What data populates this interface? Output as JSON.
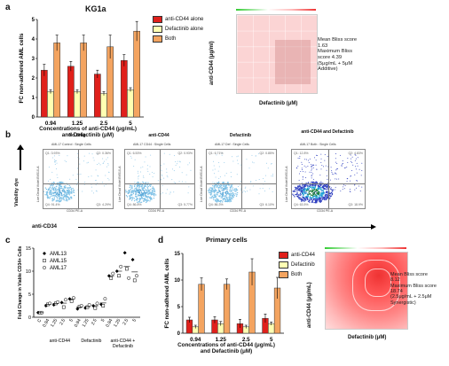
{
  "panel_a": {
    "letter": "a",
    "title": "KG1a",
    "ylabel": "FC non-adhered AML cells",
    "xlabel_line1": "Concentrations of anti-CD44 (μg/mL)",
    "xlabel_line2": "and Defactinib (μM)",
    "legend": [
      "anti-CD44 alone",
      "Defactinib alone",
      "Both"
    ],
    "heatmap": {
      "ylabel": "anti-CD44 (μg/ml)",
      "xlabel": "Defactinib (μM)",
      "note_lines": [
        "Mean Bliss score",
        "1.63",
        "Maximum Bliss",
        "score 4.39",
        "(5μg/mL + 5μM",
        "Additive)"
      ]
    }
  },
  "panel_b": {
    "letter": "b",
    "ylabel": "Viability dye",
    "xlabel": "anti-CD34",
    "plots": [
      {
        "title": "No drug",
        "header": "AML17 Control : Single Cells",
        "q1": "Q1: 3.93%",
        "q2": "Q2: 0.36%",
        "q3": "Q3: 4.29%",
        "q4": "Q4: 91.4%"
      },
      {
        "title": "anti-CD44",
        "header": "AML17 CD44 : Single Cells",
        "q1": "Q1: 6.53%",
        "q2": "Q2: 0.93%",
        "q3": "Q3: 5.77%",
        "q4": "Q4: 86.8%"
      },
      {
        "title": "Defactinib",
        "header": "AML17 Def : Single Cells",
        "q1": "Q1: 6.71%",
        "q2": "Q2: 0.85%",
        "q3": "Q3: 6.10%",
        "q4": "Q4: 86.3%"
      },
      {
        "title": "anti-CD44 and Defactinib",
        "header": "AML17 Both : Single Cells",
        "q1": "Q1: 12.8%",
        "q2": "Q2: 4.83%",
        "q3": "Q3: 18.9%",
        "q4": "Q4: 63.5%"
      }
    ],
    "axis_y": "Live Dead Violet BV510-A",
    "axis_x": "CD34 PE-A"
  },
  "panel_c": {
    "letter": "c",
    "ylabel_line1": "Fold Change in Viable CD34+ Cells",
    "legend": [
      "AML13",
      "AML15",
      "AML17"
    ],
    "group_labels": [
      "anti-CD44",
      "Defactinib",
      "anti-CD44 +",
      "Defactinib"
    ],
    "tick_labels": [
      "C",
      "0.94",
      "1.25",
      "2.5",
      "5",
      "0.94",
      "1.25",
      "2.5",
      "5",
      "0.94",
      "1.25",
      "2.5",
      "5"
    ]
  },
  "panel_d": {
    "letter": "d",
    "title": "Primary cells",
    "ylabel": "FC non-adhered AML cells",
    "xlabel_line1": "Concentrations of anti-CD44 (μg/mL)",
    "xlabel_line2": "and Defactinib (μM)",
    "legend": [
      "anti-CD44",
      "Defactinib",
      "Both"
    ],
    "heatmap": {
      "ylabel": "anti-CD44 (μg/mL)",
      "xlabel": "Defactinib (μM)",
      "note_lines": [
        "Mean Bliss score",
        "8.12",
        "Maximum Bliss score",
        "18.74",
        "(2.5μg/mL + 2.5μM",
        "Synergistic)"
      ]
    }
  },
  "colors": {
    "anti_cd44": "#e0201b",
    "defactinib": "#ffffb3",
    "both": "#f4a460"
  },
  "chart_data": [
    {
      "type": "bar",
      "panel": "a",
      "categories": [
        "0.94",
        "1.25",
        "2.5",
        "5"
      ],
      "ylim": [
        0,
        5
      ],
      "yticks": [
        0,
        1,
        2,
        3,
        4,
        5
      ],
      "series": [
        {
          "name": "anti-CD44 alone",
          "values": [
            2.4,
            2.6,
            2.2,
            2.9
          ],
          "errors": [
            0.3,
            0.25,
            0.2,
            0.3
          ]
        },
        {
          "name": "Defactinib alone",
          "values": [
            1.3,
            1.3,
            1.2,
            1.4
          ],
          "errors": [
            0.1,
            0.1,
            0.1,
            0.1
          ]
        },
        {
          "name": "Both",
          "values": [
            3.8,
            3.8,
            3.6,
            4.4
          ],
          "errors": [
            0.4,
            0.4,
            0.6,
            0.5
          ]
        }
      ]
    },
    {
      "type": "scatter",
      "panel": "c",
      "categories": [
        "C",
        "0.94",
        "1.25",
        "2.5",
        "5",
        "0.94",
        "1.25",
        "2.5",
        "5",
        "0.94",
        "1.25",
        "2.5",
        "5"
      ],
      "ylim": [
        0,
        15
      ],
      "yticks": [
        0,
        5,
        10,
        15
      ],
      "series": [
        {
          "name": "AML13",
          "values": [
            1.0,
            2.5,
            2.7,
            3.2,
            4.0,
            1.8,
            2.0,
            2.5,
            2.8,
            9.0,
            10.0,
            14.0,
            12.5
          ]
        },
        {
          "name": "AML15",
          "values": [
            1.0,
            2.8,
            3.0,
            2.2,
            3.5,
            2.3,
            2.2,
            2.0,
            2.5,
            8.5,
            9.0,
            10.5,
            8.0
          ]
        },
        {
          "name": "AML17",
          "values": [
            1.0,
            3.0,
            3.3,
            3.8,
            4.2,
            2.5,
            2.7,
            3.0,
            4.0,
            9.5,
            11.0,
            8.5,
            9.0
          ]
        }
      ]
    },
    {
      "type": "bar",
      "panel": "d",
      "categories": [
        "0.94",
        "1.25",
        "2.5",
        "5"
      ],
      "ylim": [
        0,
        15
      ],
      "yticks": [
        0,
        5,
        10,
        15
      ],
      "series": [
        {
          "name": "anti-CD44",
          "values": [
            2.5,
            2.5,
            1.8,
            2.8
          ],
          "errors": [
            0.5,
            0.6,
            0.8,
            0.8
          ]
        },
        {
          "name": "Defactinib",
          "values": [
            1.2,
            1.8,
            1.2,
            1.8
          ],
          "errors": [
            0.3,
            0.4,
            0.3,
            0.3
          ]
        },
        {
          "name": "Both",
          "values": [
            9.2,
            9.2,
            11.5,
            8.5
          ],
          "errors": [
            1.2,
            1.0,
            2.5,
            2.0
          ]
        }
      ]
    }
  ]
}
